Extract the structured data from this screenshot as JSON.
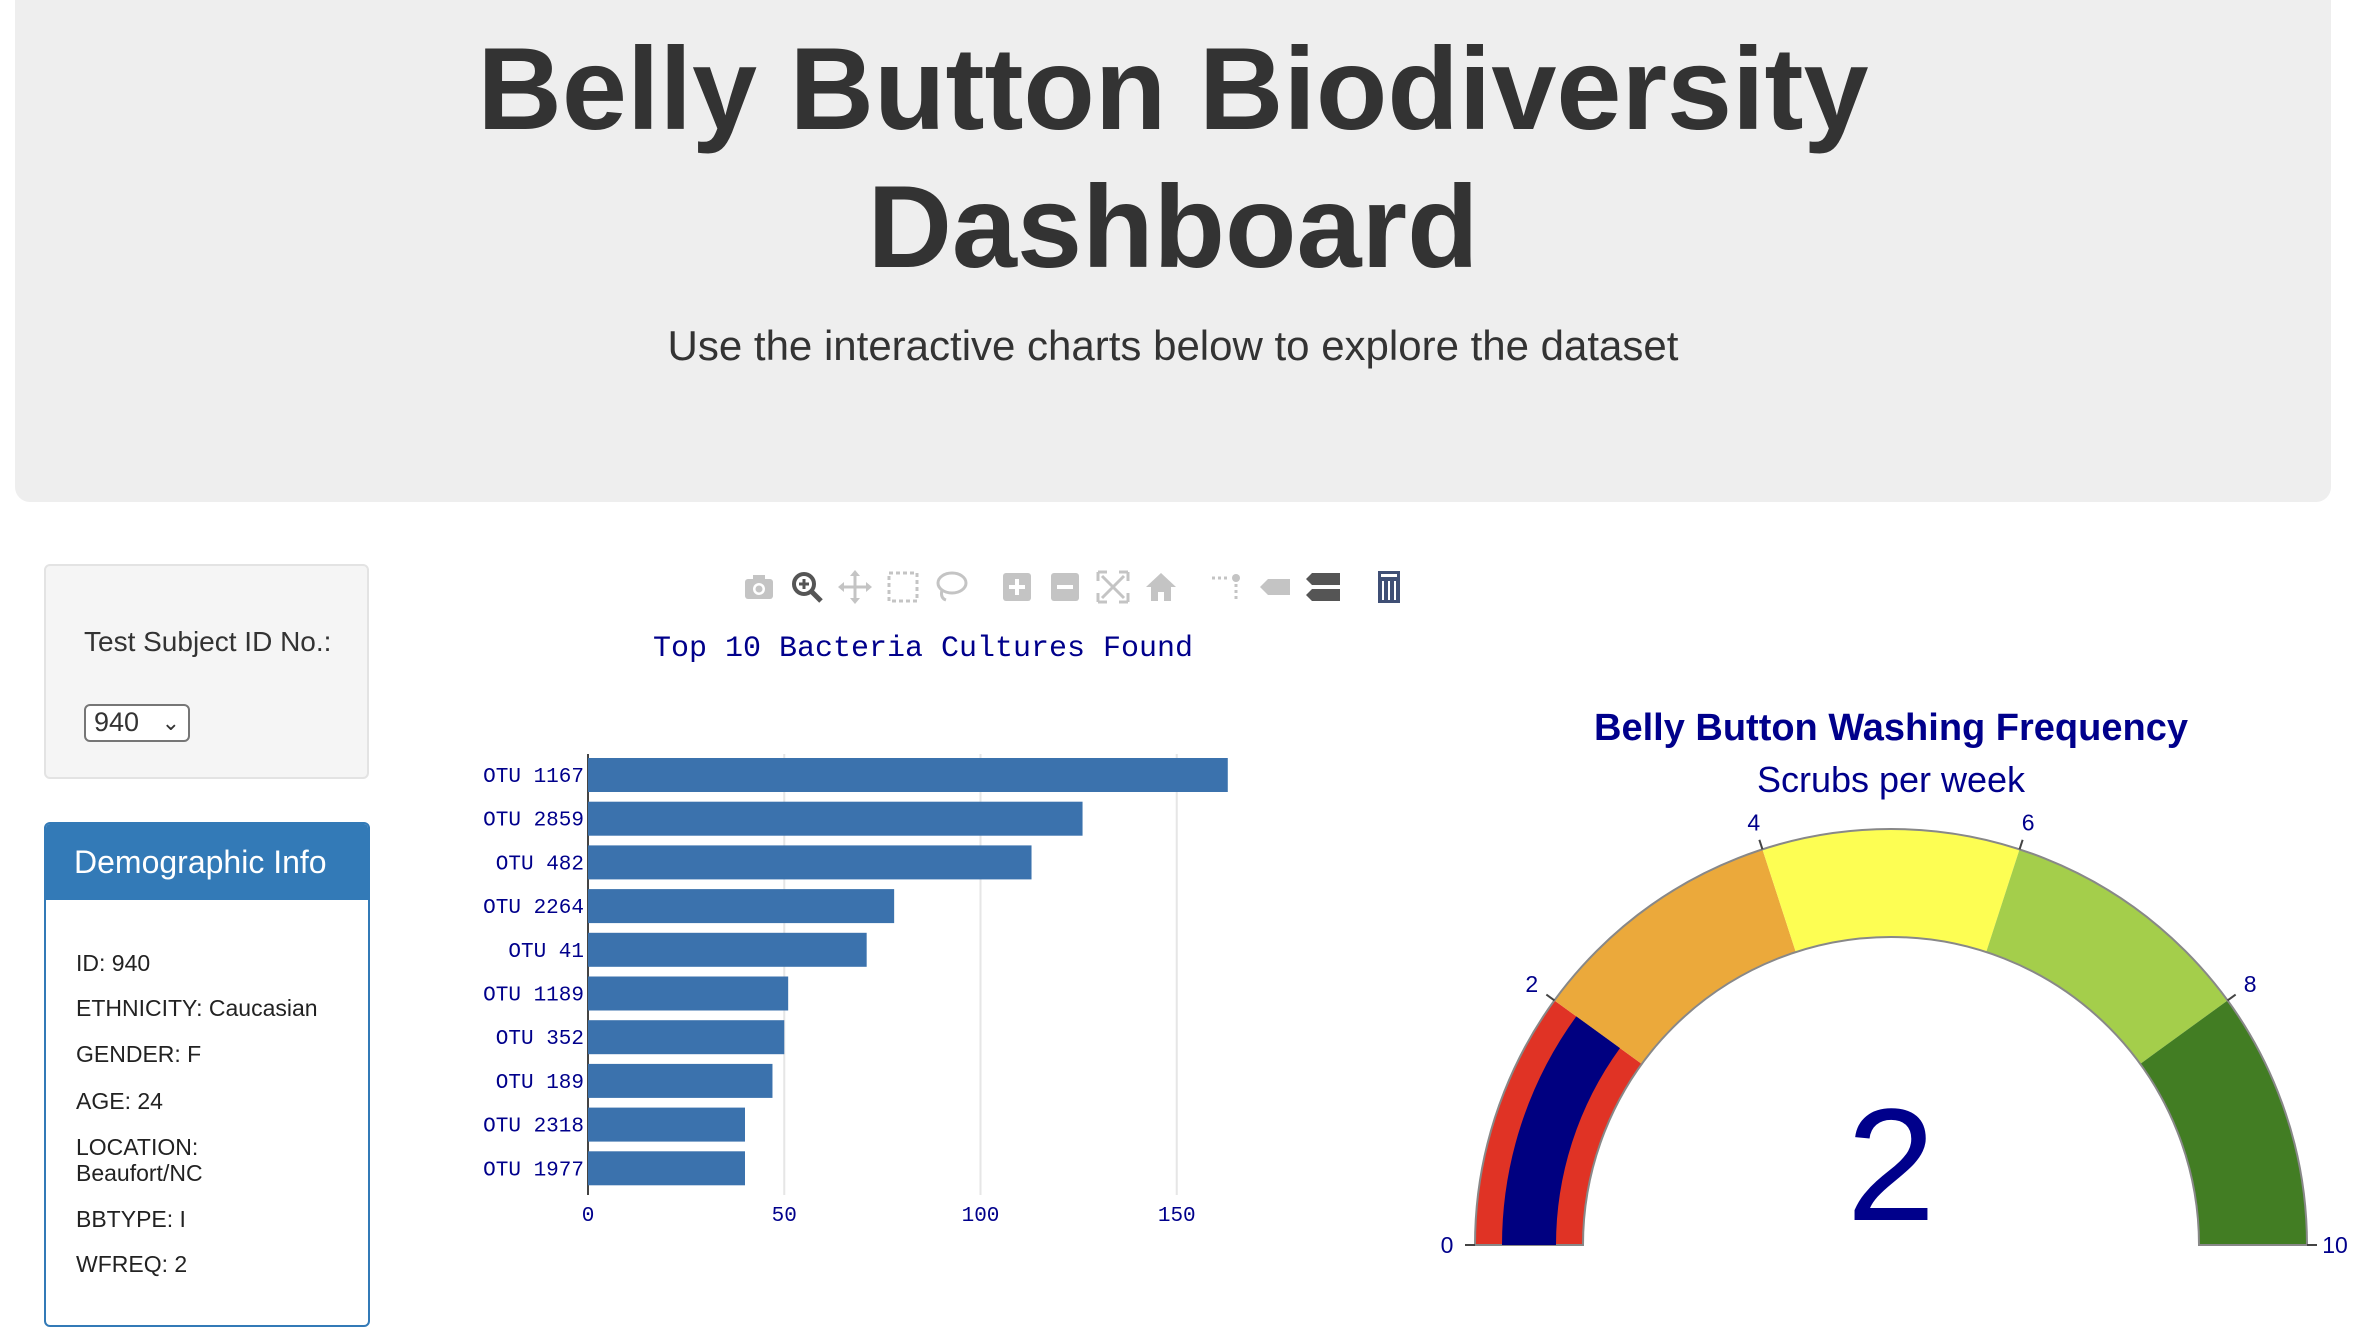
{
  "header": {
    "title_line1": "Belly Button Biodiversity",
    "title_line2": "Dashboard",
    "subtitle": "Use the interactive charts below to explore the dataset"
  },
  "selector": {
    "label": "Test Subject ID No.:",
    "selected_value": "940"
  },
  "demographics": {
    "heading": "Demographic Info",
    "lines": [
      "ID: 940",
      "ETHNICITY: Caucasian",
      "GENDER: F",
      "AGE: 24",
      "LOCATION: Beaufort/NC",
      "BBTYPE: I",
      "WFREQ: 2"
    ]
  },
  "toolbar": {
    "icons": [
      "camera-icon",
      "zoom-icon",
      "pan-icon",
      "box-select-icon",
      "lasso-select-icon",
      "zoom-in-icon",
      "zoom-out-icon",
      "autoscale-icon",
      "reset-axes-icon",
      "spike-lines-icon",
      "hover-closest-icon",
      "hover-compare-icon",
      "plotly-logo-icon"
    ]
  },
  "chart_data": [
    {
      "type": "bar",
      "orientation": "horizontal",
      "title": "Top 10 Bacteria Cultures Found",
      "categories": [
        "OTU 1167",
        "OTU 2859",
        "OTU 482",
        "OTU 2264",
        "OTU 41",
        "OTU 1189",
        "OTU 352",
        "OTU 189",
        "OTU 2318",
        "OTU 1977"
      ],
      "values": [
        163,
        126,
        113,
        78,
        71,
        51,
        50,
        47,
        40,
        40
      ],
      "xticks": [
        0,
        50,
        100,
        150
      ],
      "xlim": [
        0,
        166
      ],
      "grid": true,
      "bar_color": "#3b72ad",
      "text_color": "#00008b"
    },
    {
      "type": "gauge",
      "title": "Belly Button Washing Frequency",
      "subtitle": "Scrubs per week",
      "value": 2,
      "range": [
        0,
        10
      ],
      "ticks": [
        0,
        2,
        4,
        6,
        8,
        10
      ],
      "steps": [
        {
          "range": [
            0,
            2
          ],
          "color": "#e03325"
        },
        {
          "range": [
            2,
            4
          ],
          "color": "#eba93b"
        },
        {
          "range": [
            4,
            6
          ],
          "color": "#fdfe53"
        },
        {
          "range": [
            6,
            8
          ],
          "color": "#a4ce4b"
        },
        {
          "range": [
            8,
            10
          ],
          "color": "#427d23"
        }
      ],
      "bar_color": "#000080",
      "text_color": "#00008b"
    }
  ]
}
